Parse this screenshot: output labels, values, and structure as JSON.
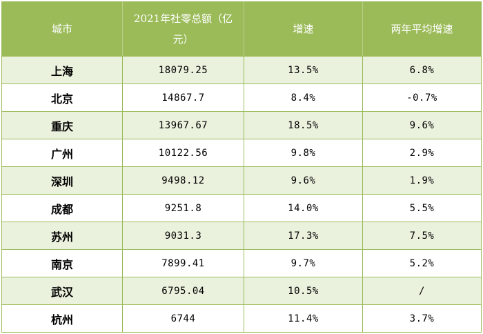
{
  "table": {
    "headers": [
      "城市",
      "2021年社零总额（亿元）",
      "增速",
      "两年平均增速"
    ],
    "rows": [
      {
        "city": "上海",
        "total": "18079.25",
        "growth": "13.5%",
        "avg_growth": "6.8%"
      },
      {
        "city": "北京",
        "total": "14867.7",
        "growth": "8.4%",
        "avg_growth": "-0.7%"
      },
      {
        "city": "重庆",
        "total": "13967.67",
        "growth": "18.5%",
        "avg_growth": "9.6%"
      },
      {
        "city": "广州",
        "total": "10122.56",
        "growth": "9.8%",
        "avg_growth": "2.9%"
      },
      {
        "city": "深圳",
        "total": "9498.12",
        "growth": "9.6%",
        "avg_growth": "1.9%"
      },
      {
        "city": "成都",
        "total": "9251.8",
        "growth": "14.0%",
        "avg_growth": "5.5%"
      },
      {
        "city": "苏州",
        "total": "9031.3",
        "growth": "17.3%",
        "avg_growth": "7.5%"
      },
      {
        "city": "南京",
        "total": "7899.41",
        "growth": "9.7%",
        "avg_growth": "5.2%"
      },
      {
        "city": "武汉",
        "total": "6795.04",
        "growth": "10.5%",
        "avg_growth": "/"
      },
      {
        "city": "杭州",
        "total": "6744",
        "growth": "11.4%",
        "avg_growth": "3.7%"
      }
    ]
  },
  "colors": {
    "header_bg": "#9bbb59",
    "header_text": "#ffffff",
    "alt_row_bg": "#eaf1dd",
    "row_bg": "#ffffff",
    "border": "#9bbb59"
  }
}
